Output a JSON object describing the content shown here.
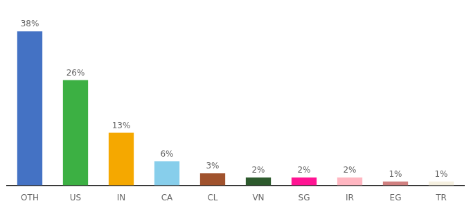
{
  "chart_data": {
    "type": "bar",
    "categories": [
      "OTH",
      "US",
      "IN",
      "CA",
      "CL",
      "VN",
      "SG",
      "IR",
      "EG",
      "TR"
    ],
    "values": [
      38,
      26,
      13,
      6,
      3,
      2,
      2,
      2,
      1,
      1
    ],
    "value_labels": [
      "38%",
      "26%",
      "13%",
      "6%",
      "3%",
      "2%",
      "2%",
      "2%",
      "1%",
      "1%"
    ],
    "colors": [
      "#4472c4",
      "#3cb043",
      "#f5a800",
      "#87ceeb",
      "#a0522d",
      "#2d5a2d",
      "#ff1493",
      "#ffb6c1",
      "#d08080",
      "#f5f0e0"
    ],
    "ylim": [
      0,
      44
    ],
    "data_labels": true,
    "grid": false,
    "tick_labels": "x"
  }
}
